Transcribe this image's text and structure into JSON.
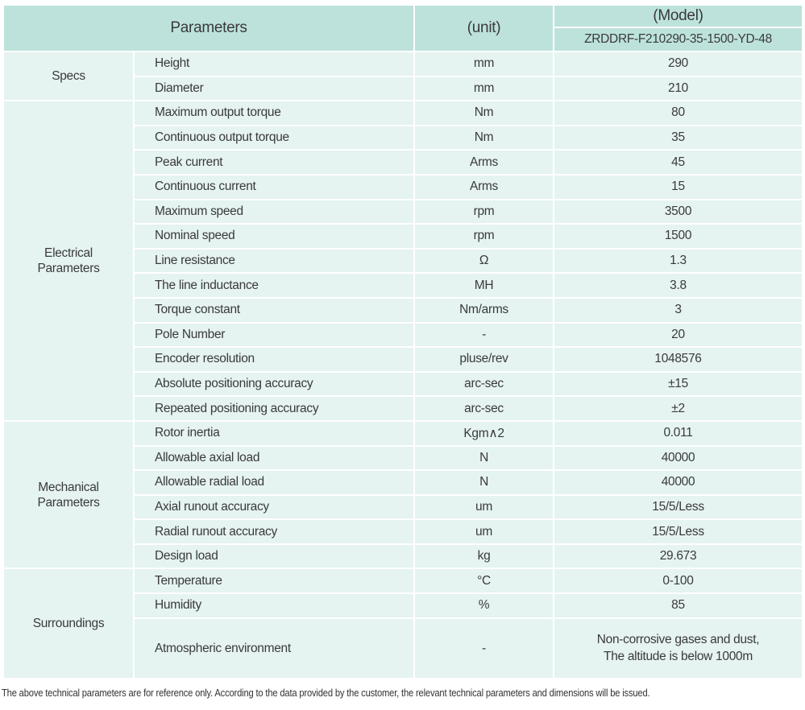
{
  "header": {
    "parameters": "Parameters",
    "unit": "(unit)",
    "model": "(Model)",
    "model_name": "ZRDDRF-F210290-35-1500-YD-48"
  },
  "groups": [
    {
      "name": "Specs",
      "rows": [
        {
          "param": "Height",
          "unit": "mm",
          "value": "290"
        },
        {
          "param": "Diameter",
          "unit": "mm",
          "value": "210"
        }
      ]
    },
    {
      "name": "Electrical Parameters",
      "rows": [
        {
          "param": "Maximum output torque",
          "unit": "Nm",
          "value": "80"
        },
        {
          "param": "Continuous output torque",
          "unit": "Nm",
          "value": "35"
        },
        {
          "param": "Peak current",
          "unit": "Arms",
          "value": "45"
        },
        {
          "param": "Continuous current",
          "unit": "Arms",
          "value": "15"
        },
        {
          "param": "Maximum speed",
          "unit": "rpm",
          "value": "3500"
        },
        {
          "param": "Nominal speed",
          "unit": "rpm",
          "value": "1500"
        },
        {
          "param": "Line resistance",
          "unit": "Ω",
          "value": "1.3"
        },
        {
          "param": "The line inductance",
          "unit": "MH",
          "value": "3.8"
        },
        {
          "param": "Torque constant",
          "unit": "Nm/arms",
          "value": "3"
        },
        {
          "param": "Pole Number",
          "unit": "-",
          "value": "20"
        },
        {
          "param": "Encoder resolution",
          "unit": "pluse/rev",
          "value": "1048576"
        },
        {
          "param": "Absolute positioning accuracy",
          "unit": "arc-sec",
          "value": "±15"
        },
        {
          "param": "Repeated positioning accuracy",
          "unit": "arc-sec",
          "value": "±2"
        }
      ]
    },
    {
      "name": "Mechanical Parameters",
      "rows": [
        {
          "param": "Rotor inertia",
          "unit": "Kgm∧2",
          "value": "0.011"
        },
        {
          "param": "Allowable axial load",
          "unit": "N",
          "value": "40000"
        },
        {
          "param": "Allowable radial load",
          "unit": "N",
          "value": "40000"
        },
        {
          "param": "Axial runout accuracy",
          "unit": "um",
          "value": "15/5/Less"
        },
        {
          "param": "Radial runout accuracy",
          "unit": "um",
          "value": "15/5/Less"
        },
        {
          "param": "Design load",
          "unit": "kg",
          "value": "29.673"
        }
      ]
    },
    {
      "name": "Surroundings",
      "rows": [
        {
          "param": "Temperature",
          "unit": "°C",
          "value": "0-100"
        },
        {
          "param": "Humidity",
          "unit": "%",
          "value": "85"
        },
        {
          "param": "Atmospheric environment",
          "unit": "-",
          "value": "Non-corrosive gases and dust,\nThe altitude is below 1000m"
        }
      ]
    }
  ],
  "footer": "The above technical parameters are for reference only. According to the data provided by the customer, the relevant technical parameters and dimensions will be issued."
}
